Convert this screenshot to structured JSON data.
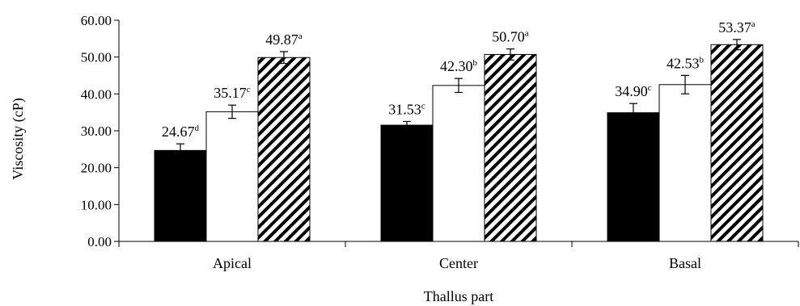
{
  "chart_data": {
    "type": "bar",
    "title": "",
    "xlabel": "Thallus part",
    "ylabel": "Viscosity (cP)",
    "ylim": [
      0,
      60
    ],
    "yticks": [
      0,
      10,
      20,
      30,
      40,
      50,
      60
    ],
    "ytick_labels": [
      "0.00",
      "10.00",
      "20.00",
      "30.00",
      "40.00",
      "50.00",
      "60.00"
    ],
    "categories": [
      "Apical",
      "Center",
      "Basal"
    ],
    "grid": false,
    "legend": "none",
    "series": [
      {
        "fill": "solid",
        "color": "#000000",
        "values": [
          24.67,
          31.53,
          34.9
        ],
        "errors": [
          1.8,
          1.0,
          2.5
        ],
        "labels": [
          "24.67",
          "31.53",
          "34.90"
        ],
        "letters": [
          "d",
          "c",
          "c"
        ]
      },
      {
        "fill": "white",
        "color": "#ffffff",
        "values": [
          35.17,
          42.3,
          42.53
        ],
        "errors": [
          1.8,
          1.9,
          2.5
        ],
        "labels": [
          "35.17",
          "42.30",
          "42.53"
        ],
        "letters": [
          "c",
          "b",
          "b"
        ]
      },
      {
        "fill": "diagonal-hatch",
        "color": "#000000",
        "values": [
          49.87,
          50.7,
          53.37
        ],
        "errors": [
          1.6,
          1.5,
          1.4
        ],
        "labels": [
          "49.87",
          "50.70",
          "53.37"
        ],
        "letters": [
          "a",
          "a",
          "a"
        ]
      }
    ]
  }
}
